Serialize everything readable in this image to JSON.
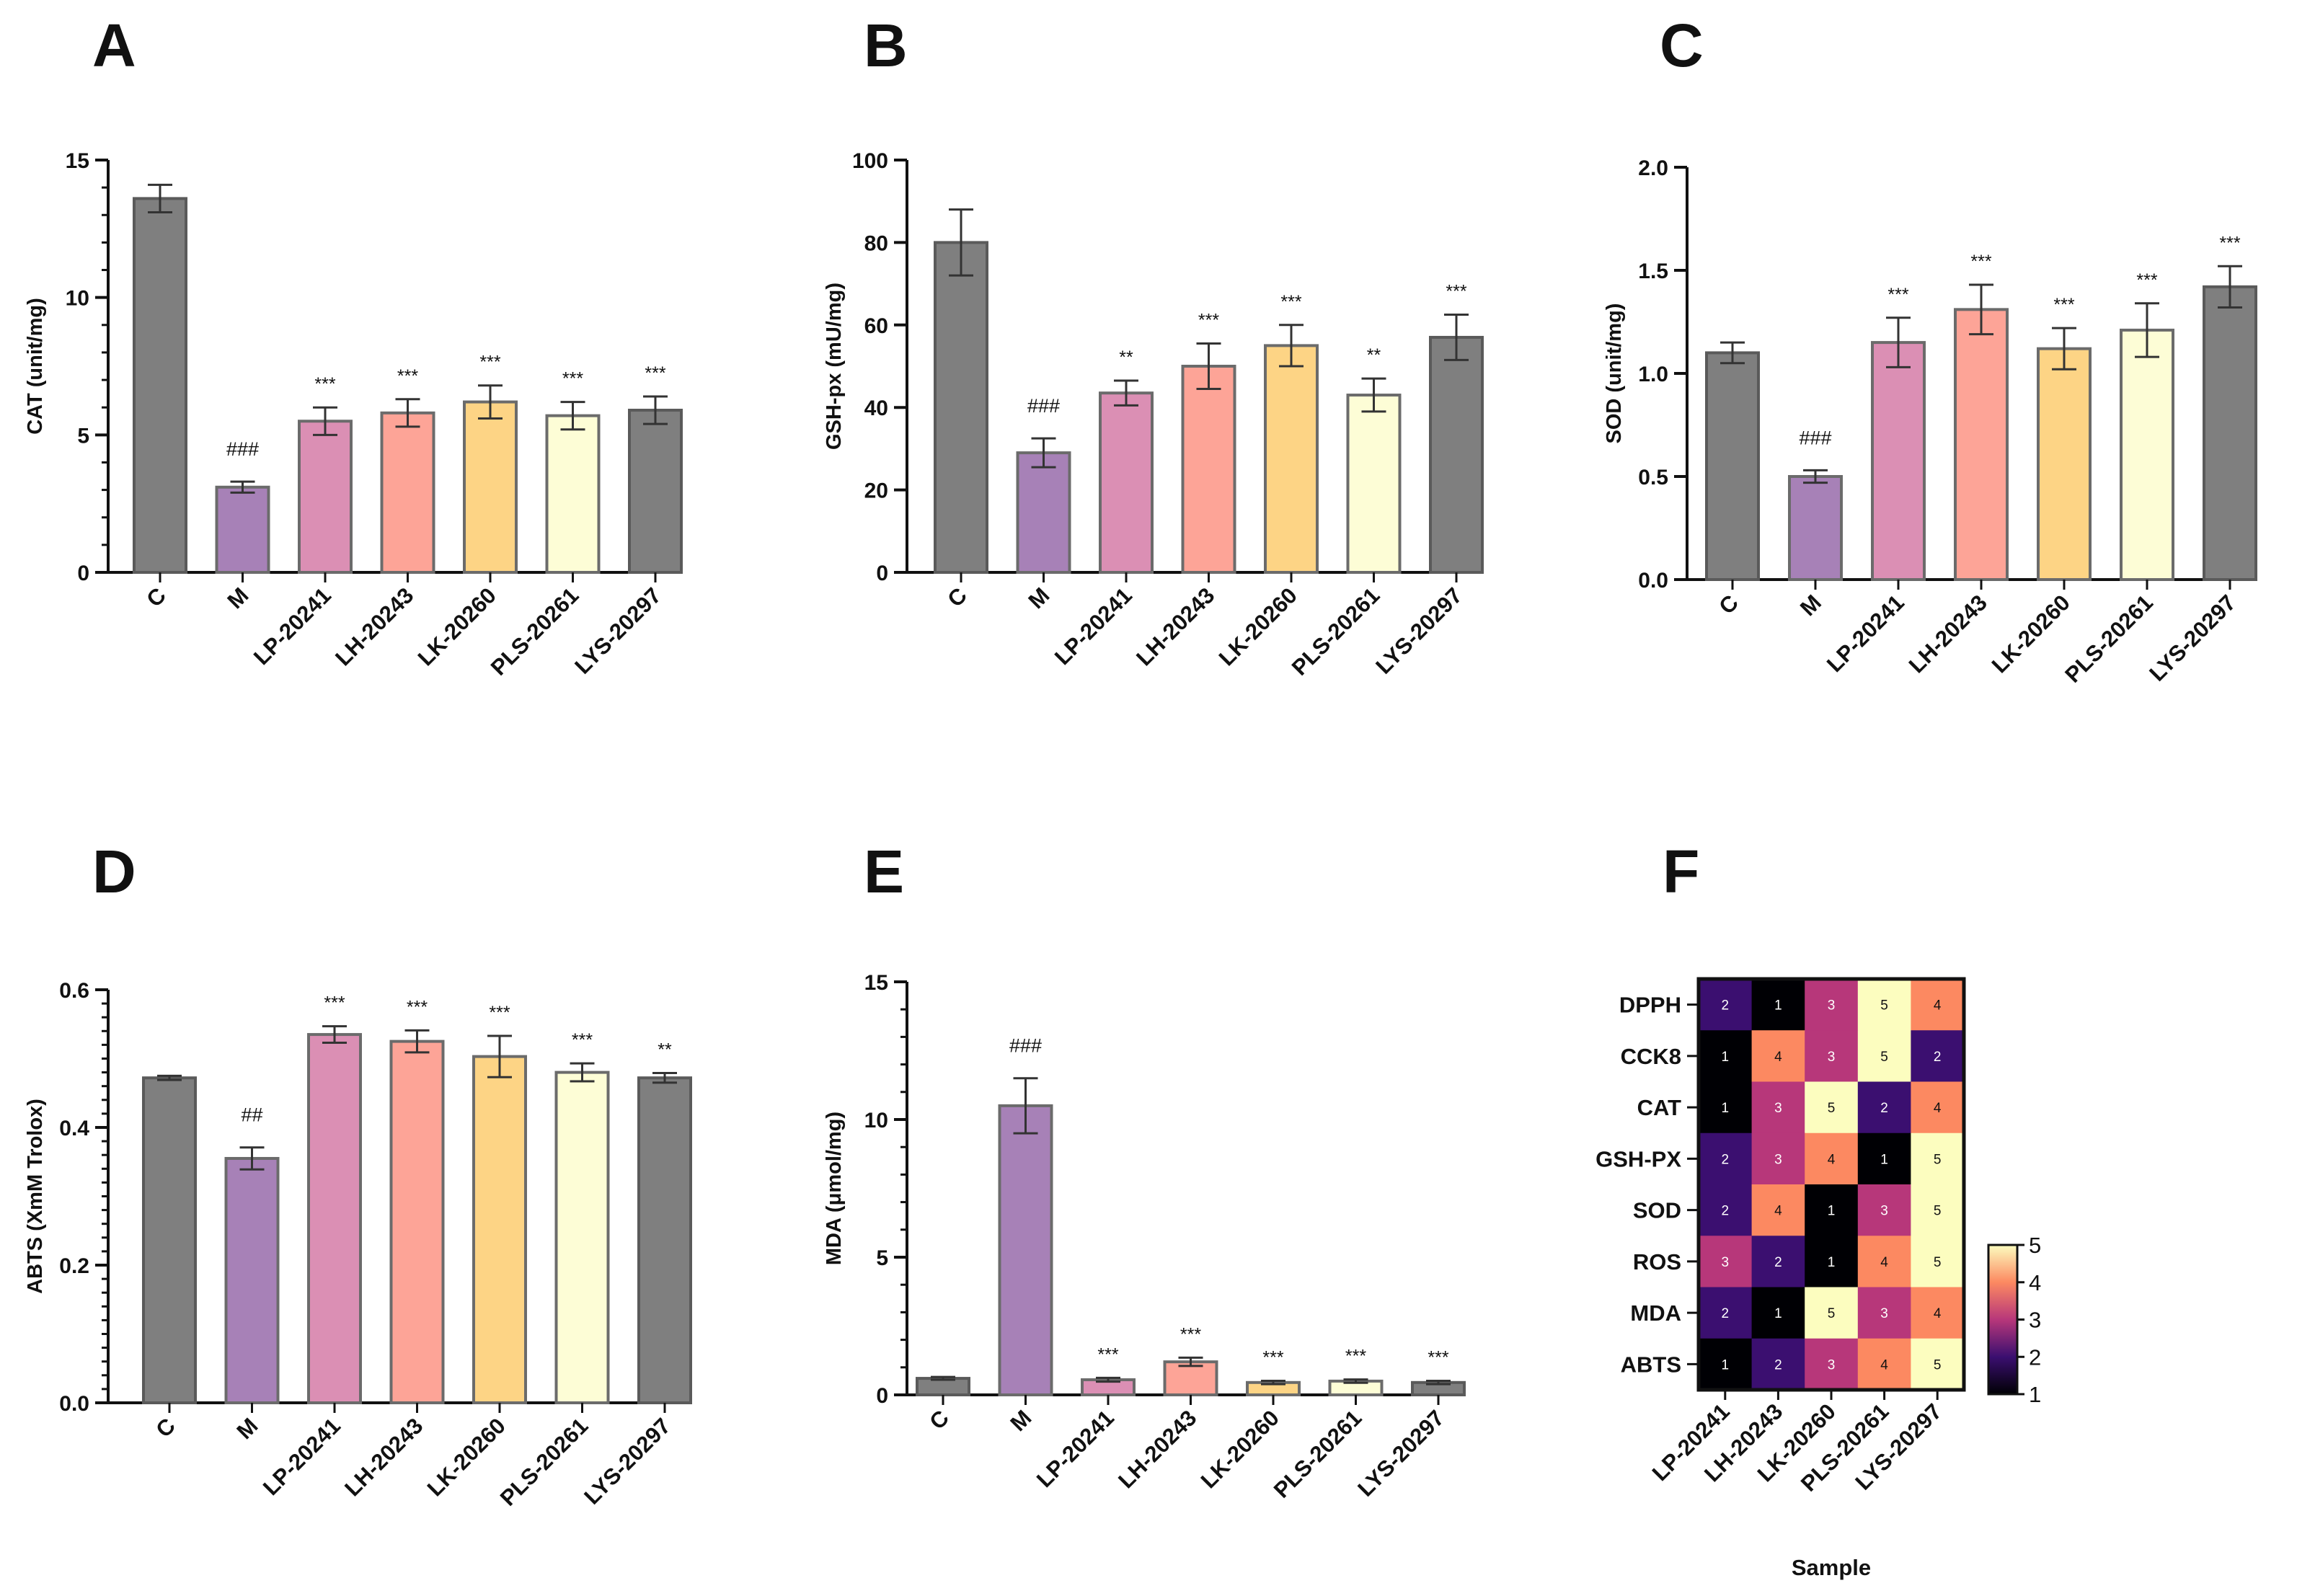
{
  "colors": {
    "C": "#7f7f7f",
    "M": "#a781b7",
    "LP-20241": "#db8fb4",
    "LH-20243": "#fda497",
    "LK-20260": "#fdd485",
    "PLS-20261": "#fdfdd6",
    "LYS-20297": "#7f7f7f"
  },
  "chart_data": [
    {
      "type": "bar",
      "panel": "A",
      "ylabel": "CAT (unit/mg)",
      "categories": [
        "C",
        "M",
        "LP-20241",
        "LH-20243",
        "LK-20260",
        "PLS-20261",
        "LYS-20297"
      ],
      "values": [
        13.6,
        3.1,
        5.5,
        5.8,
        6.2,
        5.7,
        5.9
      ],
      "errors": [
        0.5,
        0.2,
        0.5,
        0.5,
        0.6,
        0.5,
        0.5
      ],
      "annotations": [
        "",
        "###",
        "***",
        "***",
        "***",
        "***",
        "***"
      ],
      "ylim": [
        0,
        15
      ],
      "yticks": [
        "0",
        "5",
        "10",
        "15"
      ],
      "tick_values": [
        0,
        5,
        10,
        15
      ],
      "minor_step": 1
    },
    {
      "type": "bar",
      "panel": "B",
      "ylabel": "GSH-px (mU/mg)",
      "categories": [
        "C",
        "M",
        "LP-20241",
        "LH-20243",
        "LK-20260",
        "PLS-20261",
        "LYS-20297"
      ],
      "values": [
        80,
        29,
        43.5,
        50,
        55,
        43,
        57
      ],
      "errors": [
        8,
        3.5,
        3,
        5.5,
        5,
        4,
        5.5
      ],
      "annotations": [
        "",
        "###",
        "**",
        "***",
        "***",
        "**",
        "***"
      ],
      "ylim": [
        0,
        100
      ],
      "yticks": [
        "0",
        "20",
        "40",
        "60",
        "80",
        "100"
      ],
      "tick_values": [
        0,
        20,
        40,
        60,
        80,
        100
      ],
      "minor_step": 0
    },
    {
      "type": "bar",
      "panel": "C",
      "ylabel": "SOD (unit/mg)",
      "categories": [
        "C",
        "M",
        "LP-20241",
        "LH-20243",
        "LK-20260",
        "PLS-20261",
        "LYS-20297"
      ],
      "values": [
        1.1,
        0.5,
        1.15,
        1.31,
        1.12,
        1.21,
        1.42
      ],
      "errors": [
        0.05,
        0.03,
        0.12,
        0.12,
        0.1,
        0.13,
        0.1
      ],
      "annotations": [
        "",
        "###",
        "***",
        "***",
        "***",
        "***",
        "***"
      ],
      "ylim": [
        0,
        2
      ],
      "yticks": [
        "0.0",
        "0.5",
        "1.0",
        "1.5",
        "2.0"
      ],
      "tick_values": [
        0,
        0.5,
        1,
        1.5,
        2
      ],
      "minor_step": 0
    },
    {
      "type": "bar",
      "panel": "D",
      "ylabel": "ABTS (XmM Trolox)",
      "categories": [
        "C",
        "M",
        "LP-20241",
        "LH-20243",
        "LK-20260",
        "PLS-20261",
        "LYS-20297"
      ],
      "values": [
        0.472,
        0.355,
        0.535,
        0.525,
        0.503,
        0.48,
        0.472
      ],
      "errors": [
        0.003,
        0.016,
        0.012,
        0.016,
        0.03,
        0.013,
        0.007
      ],
      "annotations": [
        "",
        "##",
        "***",
        "***",
        "***",
        "***",
        "**"
      ],
      "ylim": [
        0,
        0.6
      ],
      "yticks": [
        "0.0",
        "0.2",
        "0.4",
        "0.6"
      ],
      "tick_values": [
        0,
        0.2,
        0.4,
        0.6
      ],
      "minor_step": 0.02
    },
    {
      "type": "bar",
      "panel": "E",
      "ylabel": "MDA (μmol/mg)",
      "categories": [
        "C",
        "M",
        "LP-20241",
        "LH-20243",
        "LK-20260",
        "PLS-20261",
        "LYS-20297"
      ],
      "values": [
        0.6,
        10.5,
        0.55,
        1.2,
        0.45,
        0.5,
        0.45
      ],
      "errors": [
        0.05,
        1.0,
        0.07,
        0.15,
        0.06,
        0.06,
        0.06
      ],
      "annotations": [
        "",
        "###",
        "***",
        "***",
        "***",
        "***",
        "***"
      ],
      "ylim": [
        0,
        15
      ],
      "yticks": [
        "0",
        "5",
        "10",
        "15"
      ],
      "tick_values": [
        0,
        5,
        10,
        15
      ],
      "minor_step": 1
    },
    {
      "type": "heatmap",
      "panel": "F",
      "rows": [
        "DPPH",
        "CCK8",
        "CAT",
        "GSH-PX",
        "SOD",
        "ROS",
        "MDA",
        "ABTS"
      ],
      "columns": [
        "LP-20241",
        "LH-20243",
        "LK-20260",
        "PLS-20261",
        "LYS-20297"
      ],
      "values": [
        [
          2,
          1,
          3,
          5,
          4
        ],
        [
          1,
          4,
          3,
          5,
          2
        ],
        [
          1,
          3,
          5,
          2,
          4
        ],
        [
          2,
          3,
          4,
          1,
          5
        ],
        [
          2,
          4,
          1,
          3,
          5
        ],
        [
          3,
          2,
          1,
          4,
          5
        ],
        [
          2,
          1,
          5,
          3,
          4
        ],
        [
          1,
          2,
          3,
          4,
          5
        ]
      ],
      "xlabel": "Sample",
      "colorbar": {
        "min": 1,
        "max": 5,
        "ticks": [
          "1",
          "2",
          "3",
          "4",
          "5"
        ]
      }
    }
  ]
}
